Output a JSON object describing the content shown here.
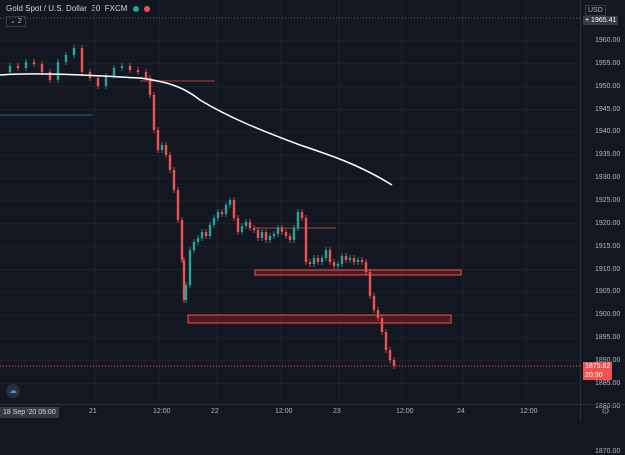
{
  "header": {
    "symbol": "Gold Spot / U.S. Dollar",
    "interval": "30",
    "exchange": "FXCM",
    "indicator_count": "2",
    "status_colors": {
      "live": "#26a69a",
      "alert": "#ef5350"
    }
  },
  "price_axis": {
    "currency": "USD",
    "labels": [
      "1960.00",
      "1955.00",
      "1950.00",
      "1945.00",
      "1940.00",
      "1935.00",
      "1930.00",
      "1925.00",
      "1920.00",
      "1915.00",
      "1910.00",
      "1905.00",
      "1900.00",
      "1895.00",
      "1890.00",
      "1885.00",
      "1880.00",
      "1870.00"
    ],
    "crosshair_price": "1965.41",
    "last_price": "1875.62",
    "countdown": "20:30"
  },
  "time_axis": {
    "current_date": "18 Sep '20  05:00",
    "labels": [
      "21",
      "12:00",
      "22",
      "12:00",
      "23",
      "12:00",
      "24",
      "12:00"
    ]
  },
  "colors": {
    "background": "#131722",
    "up": "#26a69a",
    "down": "#ef5350",
    "moving_average": "#ffffff",
    "zone": "#b71c1c"
  },
  "icons": {
    "logo": "tradingview-logo-icon",
    "settings": "gear-icon",
    "plus": "plus-icon"
  }
}
